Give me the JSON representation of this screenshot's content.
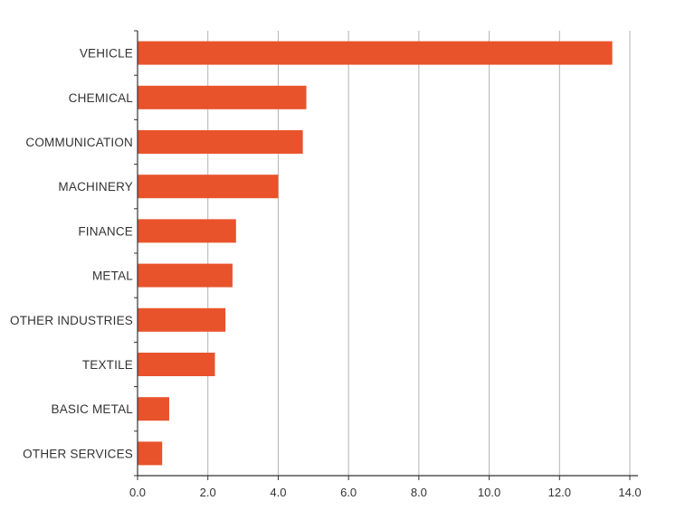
{
  "chart_data": {
    "type": "bar",
    "orientation": "horizontal",
    "categories": [
      "VEHICLE",
      "CHEMICAL",
      "COMMUNICATION",
      "MACHINERY",
      "FINANCE",
      "METAL",
      "OTHER INDUSTRIES",
      "TEXTILE",
      "BASIC METAL",
      "OTHER SERVICES"
    ],
    "values": [
      13.5,
      4.8,
      4.7,
      4.0,
      2.8,
      2.7,
      2.5,
      2.2,
      0.9,
      0.7
    ],
    "xlim": [
      0,
      14
    ],
    "x_ticks": [
      "0.0",
      "2.0",
      "4.0",
      "6.0",
      "8.0",
      "10.0",
      "12.0",
      "14.0"
    ],
    "title": "",
    "xlabel": "",
    "ylabel": "",
    "grid": "vertical",
    "bar_color": "#E8532B",
    "grid_color": "#B3B3B3",
    "axis_color": "#333333"
  }
}
